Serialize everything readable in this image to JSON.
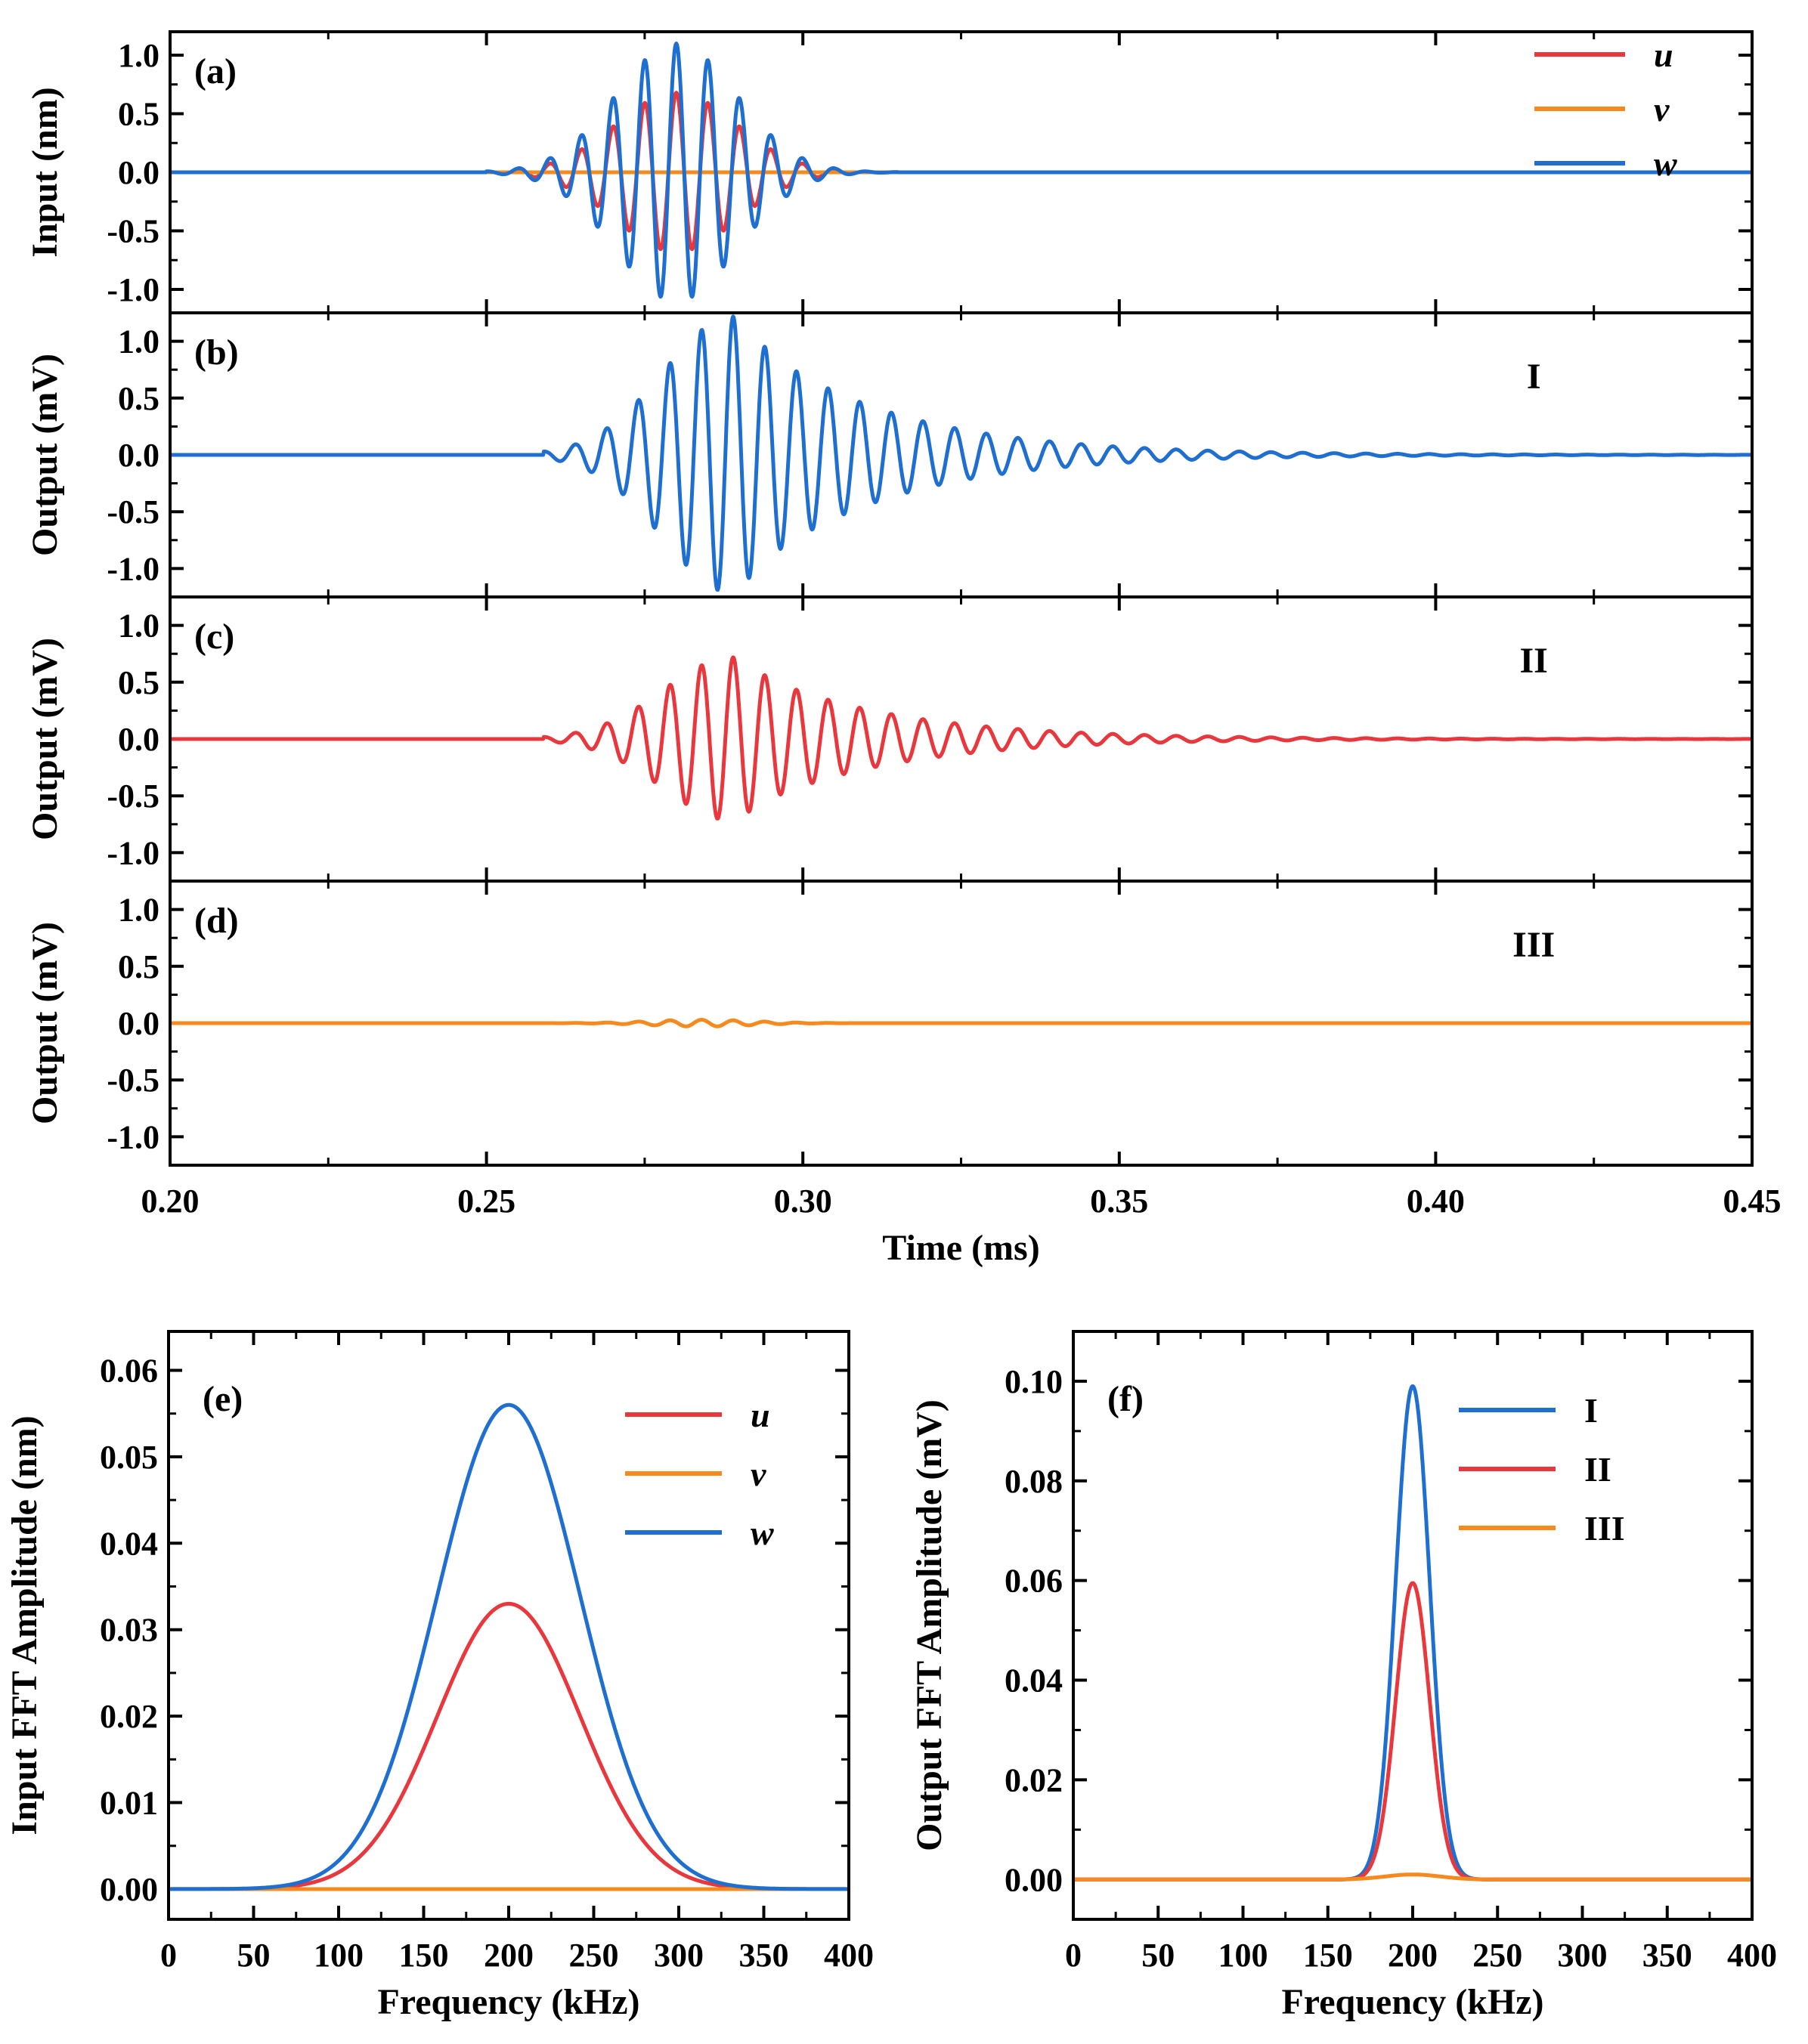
{
  "colors": {
    "u": "#e8383d",
    "v": "#f58a1f",
    "w": "#1f6fd1",
    "I": "#1f6fd1",
    "II": "#e8383d",
    "III": "#f58a1f"
  },
  "chart_data": [
    {
      "id": "a",
      "type": "line",
      "panel_label": "(a)",
      "ylabel": "Input (nm)",
      "xlim": [
        0.2,
        0.45
      ],
      "ylim": [
        -1.2,
        1.2
      ],
      "yticks": [
        "-1.0",
        "-0.5",
        "0.0",
        "0.5",
        "1.0"
      ],
      "legend": [
        "u",
        "v",
        "w"
      ],
      "series": [
        {
          "name": "u",
          "color_key": "u",
          "center": 0.28,
          "sigma": 0.0095,
          "freq_khz": 200,
          "amplitude": 0.68,
          "decay": 0
        },
        {
          "name": "v",
          "color_key": "v",
          "center": 0.28,
          "sigma": 0.0095,
          "freq_khz": 200,
          "amplitude": 0.0,
          "decay": 0
        },
        {
          "name": "w",
          "color_key": "w",
          "center": 0.28,
          "sigma": 0.0095,
          "freq_khz": 200,
          "amplitude": 1.1,
          "decay": 0
        }
      ]
    },
    {
      "id": "b",
      "type": "line",
      "panel_label": "(b)",
      "roman": "I",
      "ylabel": "Output (mV)",
      "xlim": [
        0.2,
        0.45
      ],
      "ylim": [
        -1.25,
        1.25
      ],
      "yticks": [
        "-1.0",
        "-0.5",
        "0.0",
        "0.5",
        "1.0"
      ],
      "series": [
        {
          "name": "I",
          "color_key": "I",
          "center": 0.289,
          "sigma": 0.011,
          "freq_khz": 200,
          "amplitude": 1.22,
          "decay": 0.022
        }
      ]
    },
    {
      "id": "c",
      "type": "line",
      "panel_label": "(c)",
      "roman": "II",
      "ylabel": "Output (mV)",
      "xlim": [
        0.2,
        0.45
      ],
      "ylim": [
        -1.25,
        1.25
      ],
      "yticks": [
        "-1.0",
        "-0.5",
        "0.0",
        "0.5",
        "1.0"
      ],
      "series": [
        {
          "name": "II",
          "color_key": "II",
          "center": 0.289,
          "sigma": 0.011,
          "freq_khz": 200,
          "amplitude": 0.72,
          "decay": 0.022
        }
      ]
    },
    {
      "id": "d",
      "type": "line",
      "panel_label": "(d)",
      "roman": "III",
      "ylabel": "Output (mV)",
      "xlim": [
        0.2,
        0.45
      ],
      "ylim": [
        -1.25,
        1.25
      ],
      "yticks": [
        "-1.0",
        "-0.5",
        "0.0",
        "0.5",
        "1.0"
      ],
      "xticks": [
        "0.20",
        "0.25",
        "0.30",
        "0.35",
        "0.40",
        "0.45"
      ],
      "xlabel": "Time (ms)",
      "series": [
        {
          "name": "III",
          "color_key": "III",
          "center": 0.284,
          "sigma": 0.008,
          "freq_khz": 200,
          "amplitude": 0.03,
          "decay": 0
        }
      ]
    },
    {
      "id": "e",
      "type": "line",
      "panel_label": "(e)",
      "xlabel": "Frequency (kHz)",
      "ylabel": "Input FFT Amplitude (nm)",
      "xlim": [
        0,
        400
      ],
      "ylim": [
        -0.0035,
        0.0645
      ],
      "xticks": [
        "0",
        "50",
        "100",
        "150",
        "200",
        "250",
        "300",
        "350",
        "400"
      ],
      "yticks": [
        "0.00",
        "0.01",
        "0.02",
        "0.03",
        "0.04",
        "0.05",
        "0.06"
      ],
      "legend": [
        "u",
        "v",
        "w"
      ],
      "series": [
        {
          "name": "u",
          "color_key": "u",
          "peak_khz": 200,
          "peak": 0.033,
          "width_khz": 42
        },
        {
          "name": "v",
          "color_key": "v",
          "peak_khz": 200,
          "peak": 0.0,
          "width_khz": 42
        },
        {
          "name": "w",
          "color_key": "w",
          "peak_khz": 200,
          "peak": 0.056,
          "width_khz": 42
        }
      ]
    },
    {
      "id": "f",
      "type": "line",
      "panel_label": "(f)",
      "xlabel": "Frequency (kHz)",
      "ylabel": "Output FFT Amplitude (mV)",
      "xlim": [
        0,
        400
      ],
      "ylim": [
        -0.008,
        0.11
      ],
      "xticks": [
        "0",
        "50",
        "100",
        "150",
        "200",
        "250",
        "300",
        "350",
        "400"
      ],
      "yticks": [
        "0.00",
        "0.02",
        "0.04",
        "0.06",
        "0.08",
        "0.10"
      ],
      "legend": [
        "I",
        "II",
        "III"
      ],
      "series": [
        {
          "name": "I",
          "color_key": "I",
          "peak_khz": 200,
          "peak": 0.099,
          "width_khz": 10
        },
        {
          "name": "II",
          "color_key": "II",
          "peak_khz": 200,
          "peak": 0.0595,
          "width_khz": 10
        },
        {
          "name": "III",
          "color_key": "III",
          "peak_khz": 200,
          "peak": 0.001,
          "width_khz": 16
        }
      ]
    }
  ]
}
